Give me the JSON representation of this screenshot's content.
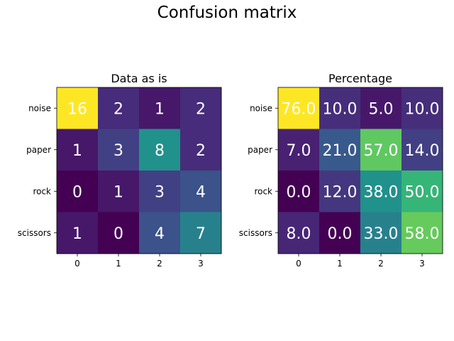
{
  "figure": {
    "suptitle": "Confusion matrix"
  },
  "chart_data": [
    {
      "type": "heatmap",
      "title": "Data as is",
      "row_labels": [
        "noise",
        "paper",
        "rock",
        "scissors"
      ],
      "col_labels": [
        "0",
        "1",
        "2",
        "3"
      ],
      "values": [
        [
          16,
          2,
          1,
          2
        ],
        [
          1,
          3,
          8,
          2
        ],
        [
          0,
          1,
          3,
          4
        ],
        [
          1,
          0,
          4,
          7
        ]
      ],
      "cell_labels": [
        [
          "16",
          "2",
          "1",
          "2"
        ],
        [
          "1",
          "3",
          "8",
          "2"
        ],
        [
          "0",
          "1",
          "3",
          "4"
        ],
        [
          "1",
          "0",
          "4",
          "7"
        ]
      ],
      "colormap": "viridis",
      "vmin": 0,
      "vmax": 16,
      "text_color": "#ffffff"
    },
    {
      "type": "heatmap",
      "title": "Percentage",
      "row_labels": [
        "noise",
        "paper",
        "rock",
        "scissors"
      ],
      "col_labels": [
        "0",
        "1",
        "2",
        "3"
      ],
      "values": [
        [
          76.0,
          10.0,
          5.0,
          10.0
        ],
        [
          7.0,
          21.0,
          57.0,
          14.0
        ],
        [
          0.0,
          12.0,
          38.0,
          50.0
        ],
        [
          8.0,
          0.0,
          33.0,
          58.0
        ]
      ],
      "cell_labels": [
        [
          "76.0",
          "10.0",
          "5.0",
          "10.0"
        ],
        [
          "7.0",
          "21.0",
          "57.0",
          "14.0"
        ],
        [
          "0.0",
          "12.0",
          "38.0",
          "50.0"
        ],
        [
          "8.0",
          "0.0",
          "33.0",
          "58.0"
        ]
      ],
      "colormap": "viridis",
      "vmin": 0,
      "vmax": 76,
      "text_color": "#ffffff"
    }
  ]
}
